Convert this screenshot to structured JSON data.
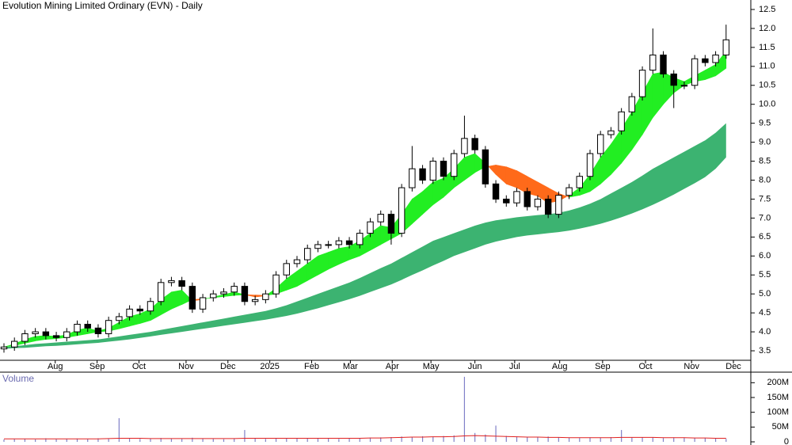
{
  "chart_data": [
    {
      "type": "candlestick",
      "title": "Evolution Mining Limited Ordinary (EVN) - Daily",
      "open": [
        3.55,
        3.6,
        3.75,
        3.95,
        4.0,
        3.9,
        3.85,
        4.0,
        4.2,
        4.1,
        3.95,
        4.3,
        4.4,
        4.6,
        4.55,
        4.8,
        5.3,
        5.35,
        5.2,
        4.6,
        4.9,
        5.0,
        5.05,
        5.2,
        4.8,
        4.85,
        5.0,
        5.5,
        5.8,
        5.9,
        6.2,
        6.3,
        6.3,
        6.4,
        6.3,
        6.6,
        6.9,
        7.1,
        6.6,
        7.8,
        8.3,
        8.0,
        8.5,
        8.1,
        8.7,
        9.1,
        8.8,
        7.9,
        7.5,
        7.4,
        7.7,
        7.3,
        7.5,
        7.1,
        7.6,
        7.8,
        8.1,
        8.7,
        9.2,
        9.3,
        9.8,
        10.2,
        10.9,
        11.3,
        10.8,
        10.5,
        10.5,
        11.2,
        11.1,
        11.3
      ],
      "high": [
        3.7,
        3.85,
        4.05,
        4.1,
        4.1,
        4.0,
        4.1,
        4.3,
        4.3,
        4.2,
        4.4,
        4.5,
        4.7,
        4.7,
        4.9,
        5.4,
        5.45,
        5.45,
        5.3,
        5.0,
        5.1,
        5.15,
        5.3,
        5.3,
        4.95,
        5.1,
        5.6,
        5.9,
        6.0,
        6.3,
        6.4,
        6.4,
        6.5,
        6.5,
        6.7,
        7.0,
        7.2,
        7.2,
        7.9,
        8.9,
        8.4,
        8.6,
        8.6,
        8.8,
        9.7,
        9.2,
        8.9,
        8.0,
        7.6,
        7.8,
        7.8,
        7.6,
        7.6,
        7.7,
        7.9,
        8.2,
        8.8,
        9.3,
        9.4,
        9.9,
        10.3,
        11.0,
        12.0,
        11.4,
        10.9,
        10.6,
        11.3,
        11.3,
        11.4,
        12.1
      ],
      "low": [
        3.45,
        3.5,
        3.65,
        3.85,
        3.8,
        3.75,
        3.75,
        3.9,
        4.0,
        3.85,
        3.85,
        4.2,
        4.3,
        4.45,
        4.45,
        4.7,
        5.2,
        5.1,
        4.5,
        4.5,
        4.8,
        4.9,
        4.95,
        4.7,
        4.7,
        4.75,
        4.9,
        5.4,
        5.7,
        5.8,
        6.1,
        6.2,
        6.2,
        6.2,
        6.2,
        6.5,
        6.8,
        6.3,
        6.5,
        7.7,
        7.9,
        7.9,
        8.0,
        8.0,
        8.6,
        8.7,
        7.8,
        7.4,
        7.3,
        7.3,
        7.2,
        7.2,
        7.0,
        7.0,
        7.5,
        7.7,
        8.0,
        8.6,
        9.1,
        9.2,
        9.7,
        10.1,
        10.8,
        10.7,
        9.9,
        10.4,
        10.4,
        11.0,
        11.0,
        11.2
      ],
      "close": [
        3.6,
        3.75,
        3.95,
        4.0,
        3.9,
        3.85,
        4.0,
        4.2,
        4.1,
        3.95,
        4.3,
        4.4,
        4.6,
        4.55,
        4.8,
        5.3,
        5.35,
        5.2,
        4.6,
        4.9,
        5.0,
        5.05,
        5.2,
        4.8,
        4.85,
        5.0,
        5.5,
        5.8,
        5.9,
        6.2,
        6.3,
        6.3,
        6.4,
        6.3,
        6.6,
        6.9,
        7.1,
        6.6,
        7.8,
        8.3,
        8.0,
        8.5,
        8.1,
        8.7,
        9.1,
        8.8,
        7.9,
        7.5,
        7.4,
        7.7,
        7.3,
        7.5,
        7.1,
        7.6,
        7.8,
        8.1,
        8.7,
        9.2,
        9.3,
        9.8,
        10.2,
        10.9,
        11.3,
        10.8,
        10.5,
        10.5,
        11.2,
        11.1,
        11.3,
        11.7
      ],
      "up_color": "#ffffff",
      "down_color": "#000000",
      "fast_band": {
        "short": [
          3.6,
          3.68,
          3.8,
          3.88,
          3.9,
          3.88,
          3.92,
          4.05,
          4.1,
          4.02,
          4.1,
          4.25,
          4.4,
          4.48,
          4.6,
          4.85,
          5.05,
          5.1,
          4.82,
          4.85,
          4.92,
          4.98,
          5.05,
          4.98,
          4.92,
          4.95,
          5.15,
          5.4,
          5.6,
          5.8,
          6.0,
          6.1,
          6.2,
          6.25,
          6.4,
          6.6,
          6.8,
          6.75,
          7.1,
          7.5,
          7.7,
          7.95,
          8.05,
          8.3,
          8.6,
          8.7,
          8.45,
          8.15,
          7.9,
          7.8,
          7.65,
          7.58,
          7.4,
          7.45,
          7.6,
          7.8,
          8.15,
          8.6,
          8.95,
          9.35,
          9.8,
          10.3,
          10.8,
          10.85,
          10.7,
          10.6,
          10.75,
          10.9,
          11.05,
          11.4
        ],
        "long": [
          3.6,
          3.64,
          3.7,
          3.76,
          3.8,
          3.82,
          3.85,
          3.9,
          3.95,
          4.0,
          4.02,
          4.08,
          4.15,
          4.22,
          4.3,
          4.45,
          4.6,
          4.72,
          4.85,
          4.87,
          4.9,
          4.93,
          4.96,
          4.98,
          4.97,
          4.96,
          5.0,
          5.1,
          5.2,
          5.35,
          5.5,
          5.65,
          5.78,
          5.9,
          6.0,
          6.15,
          6.3,
          6.45,
          6.6,
          6.85,
          7.1,
          7.35,
          7.55,
          7.8,
          8.0,
          8.2,
          8.35,
          8.4,
          8.35,
          8.25,
          8.1,
          7.95,
          7.8,
          7.65,
          7.55,
          7.6,
          7.7,
          7.9,
          8.15,
          8.45,
          8.8,
          9.2,
          9.65,
          10.0,
          10.3,
          10.5,
          10.6,
          10.65,
          10.75,
          10.95
        ],
        "up_color": "#22ee22",
        "down_color": "#ff6a1a"
      },
      "slow_band": {
        "upper": [
          3.6,
          3.62,
          3.65,
          3.68,
          3.7,
          3.72,
          3.74,
          3.76,
          3.78,
          3.8,
          3.84,
          3.88,
          3.92,
          3.96,
          4.0,
          4.05,
          4.1,
          4.15,
          4.2,
          4.25,
          4.3,
          4.35,
          4.4,
          4.45,
          4.5,
          4.55,
          4.62,
          4.7,
          4.8,
          4.9,
          5.0,
          5.1,
          5.2,
          5.3,
          5.42,
          5.55,
          5.68,
          5.8,
          5.95,
          6.1,
          6.25,
          6.4,
          6.5,
          6.6,
          6.7,
          6.8,
          6.88,
          6.94,
          6.98,
          7.02,
          7.05,
          7.08,
          7.1,
          7.14,
          7.2,
          7.28,
          7.38,
          7.5,
          7.65,
          7.8,
          7.95,
          8.12,
          8.3,
          8.45,
          8.6,
          8.75,
          8.9,
          9.05,
          9.25,
          9.5
        ],
        "lower": [
          3.55,
          3.57,
          3.58,
          3.6,
          3.62,
          3.63,
          3.65,
          3.67,
          3.69,
          3.71,
          3.74,
          3.77,
          3.8,
          3.84,
          3.88,
          3.92,
          3.96,
          4.0,
          4.04,
          4.08,
          4.12,
          4.16,
          4.2,
          4.24,
          4.28,
          4.32,
          4.37,
          4.42,
          4.48,
          4.55,
          4.62,
          4.7,
          4.78,
          4.86,
          4.95,
          5.05,
          5.15,
          5.25,
          5.37,
          5.5,
          5.62,
          5.75,
          5.87,
          6.0,
          6.1,
          6.2,
          6.3,
          6.38,
          6.44,
          6.5,
          6.54,
          6.57,
          6.6,
          6.63,
          6.67,
          6.72,
          6.78,
          6.85,
          6.93,
          7.02,
          7.12,
          7.23,
          7.35,
          7.48,
          7.62,
          7.77,
          7.92,
          8.08,
          8.3,
          8.6
        ],
        "color": "#3cb371"
      },
      "xlim": [
        0,
        70
      ],
      "xticks": [
        {
          "value": 4.9,
          "label": "Aug"
        },
        {
          "value": 8.9,
          "label": "Sep"
        },
        {
          "value": 12.9,
          "label": "Oct"
        },
        {
          "value": 17.4,
          "label": "Nov"
        },
        {
          "value": 21.4,
          "label": "Dec"
        },
        {
          "value": 25.4,
          "label": "2025"
        },
        {
          "value": 29.4,
          "label": "Feb"
        },
        {
          "value": 33.1,
          "label": "Mar"
        },
        {
          "value": 37.1,
          "label": "Apr"
        },
        {
          "value": 40.8,
          "label": "May"
        },
        {
          "value": 45,
          "label": "Jun"
        },
        {
          "value": 48.8,
          "label": "Jul"
        },
        {
          "value": 53.1,
          "label": "Aug"
        },
        {
          "value": 57.2,
          "label": "Sep"
        },
        {
          "value": 61.3,
          "label": "Oct"
        },
        {
          "value": 65.7,
          "label": "Nov"
        },
        {
          "value": 69.7,
          "label": "Dec"
        }
      ],
      "ylim": [
        3.25,
        12.75
      ],
      "yticks": [
        3.5,
        {
          "value": 4,
          "label": "4.0"
        },
        4.5,
        {
          "value": 5,
          "label": "5.0"
        },
        5.5,
        {
          "value": 6,
          "label": "6.0"
        },
        6.5,
        {
          "value": 7,
          "label": "7.0"
        },
        7.5,
        {
          "value": 8,
          "label": "8.0"
        },
        8.5,
        {
          "value": 9,
          "label": "9.0"
        },
        9.5,
        {
          "value": 10,
          "label": "10.0"
        },
        10.5,
        {
          "value": 11,
          "label": "11.0"
        },
        11.5,
        {
          "value": 12,
          "label": "12.0"
        },
        12.5
      ]
    },
    {
      "type": "bar",
      "title": "Volume",
      "values": [
        8000000,
        9000000,
        10000000,
        8000000,
        12000000,
        9000000,
        10000000,
        11000000,
        9000000,
        12000000,
        10000000,
        80000000,
        12000000,
        10000000,
        11000000,
        13000000,
        12000000,
        10000000,
        14000000,
        11000000,
        10000000,
        9000000,
        11000000,
        40000000,
        12000000,
        10000000,
        11000000,
        13000000,
        12000000,
        11000000,
        12000000,
        11000000,
        10000000,
        12000000,
        13000000,
        14000000,
        15000000,
        16000000,
        18000000,
        17000000,
        19000000,
        18000000,
        20000000,
        22000000,
        220000000,
        30000000,
        25000000,
        55000000,
        20000000,
        18000000,
        17000000,
        16000000,
        18000000,
        15000000,
        14000000,
        13000000,
        15000000,
        14000000,
        16000000,
        40000000,
        14000000,
        15000000,
        16000000,
        13000000,
        15000000,
        14000000,
        12000000,
        13000000,
        12000000,
        10000000
      ],
      "color": "#8080c8",
      "average": {
        "values": [
          10000000,
          10000000,
          10000000,
          10000000,
          10000000,
          10000000,
          10000000,
          10000000,
          10000000,
          10000000,
          11000000,
          12000000,
          12000000,
          12000000,
          11000000,
          11000000,
          11000000,
          11000000,
          11000000,
          11000000,
          11000000,
          11000000,
          11000000,
          12000000,
          12000000,
          12000000,
          12000000,
          12000000,
          12000000,
          12000000,
          12000000,
          12000000,
          12000000,
          12000000,
          12000000,
          13000000,
          13000000,
          14000000,
          15000000,
          16000000,
          16000000,
          17000000,
          17000000,
          18000000,
          20000000,
          21000000,
          20000000,
          19000000,
          18000000,
          17000000,
          16000000,
          16000000,
          15000000,
          15000000,
          14000000,
          14000000,
          14000000,
          14000000,
          14000000,
          15000000,
          15000000,
          15000000,
          15000000,
          14000000,
          14000000,
          14000000,
          13000000,
          13000000,
          12000000,
          12000000
        ],
        "color": "#e02020"
      },
      "ylim": [
        0,
        225000000
      ],
      "yticks": [
        0,
        {
          "value": 50000000,
          "label": "50M"
        },
        {
          "value": 100000000,
          "label": "100M"
        },
        {
          "value": 150000000,
          "label": "150M"
        },
        {
          "value": 200000000,
          "label": "200M"
        }
      ]
    }
  ]
}
